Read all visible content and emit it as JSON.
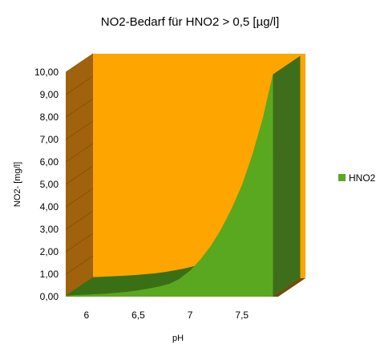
{
  "chart_data": {
    "type": "area",
    "title": "NO2-Bedarf für HNO2 > 0,5 [µg/l]",
    "xlabel": "pH",
    "ylabel": "NO2- [mg/l]",
    "x_ticks": [
      "6",
      "6,5",
      "7",
      "7,5"
    ],
    "y_ticks": [
      "0,00",
      "1,00",
      "2,00",
      "3,00",
      "4,00",
      "5,00",
      "6,00",
      "7,00",
      "8,00",
      "9,00",
      "10,00"
    ],
    "ylim": [
      0,
      10
    ],
    "xlim": [
      5.8,
      7.85
    ],
    "legend_position": "right",
    "three_d": true,
    "series": [
      {
        "name": "HNO2",
        "color": "#5aa820",
        "x": [
          5.8,
          5.9,
          6.0,
          6.1,
          6.2,
          6.3,
          6.4,
          6.5,
          6.6,
          6.7,
          6.8,
          6.9,
          7.0,
          7.1,
          7.2,
          7.3,
          7.4,
          7.5,
          7.6,
          7.7,
          7.8
        ],
        "values": [
          0.05,
          0.07,
          0.09,
          0.11,
          0.14,
          0.18,
          0.22,
          0.28,
          0.36,
          0.45,
          0.57,
          0.8,
          1.15,
          1.65,
          2.25,
          3.0,
          3.9,
          4.95,
          6.3,
          7.9,
          9.9
        ]
      }
    ],
    "colors": {
      "back_wall": "#ffa500",
      "side_wall": "#a0620c",
      "series_top": "#3a7015",
      "series_side": "#3e6e1c"
    }
  }
}
